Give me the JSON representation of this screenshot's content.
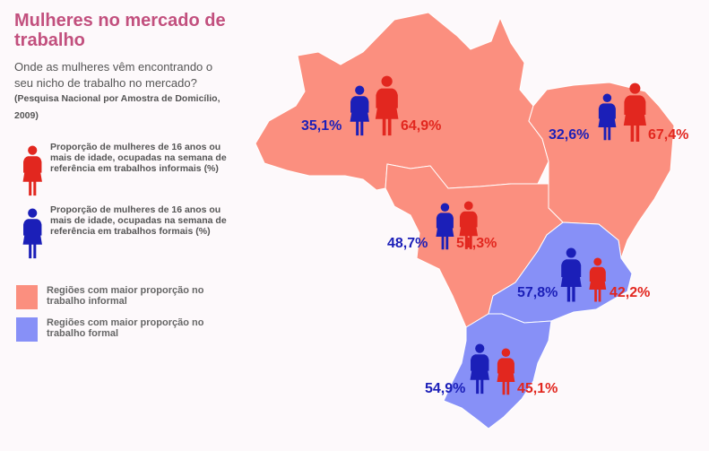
{
  "title": "Mulheres no mercado de trabalho",
  "subtitle": "Onde as mulheres vêm encontrando o seu nicho de trabalho no mercado?",
  "source": "(Pesquisa Nacional por Amostra de Domicílio, 2009)",
  "legend": {
    "informal_text": "Proporção de mulheres de 16 anos ou mais de idade, ocupadas na semana de referência em trabalhos informais (%)",
    "formal_text": "Proporção de mulheres de 16 anos ou mais de idade, ocupadas na semana de referência em trabalhos formais (%)",
    "informal_icon": "woman-figure-red-icon",
    "formal_icon": "woman-figure-blue-icon"
  },
  "swatches": {
    "informal_text": "Regiões com maior proporção no trabalho informal",
    "formal_text": "Regiões com maior proporção no trabalho formal"
  },
  "colors": {
    "informal_region": "#fb8f7f",
    "formal_region": "#8790f7",
    "informal_figure": "#e2271f",
    "formal_figure": "#1b1fb8",
    "title": "#c2507e"
  },
  "regions": {
    "north": {
      "formal": "35,1%",
      "informal": "64,9%",
      "majority": "informal"
    },
    "northeast": {
      "formal": "32,6%",
      "informal": "67,4%",
      "majority": "informal"
    },
    "center_west": {
      "formal": "48,7%",
      "informal": "51,3%",
      "majority": "informal"
    },
    "southeast": {
      "formal": "57,8%",
      "informal": "42,2%",
      "majority": "formal"
    },
    "south": {
      "formal": "54,9%",
      "informal": "45,1%",
      "majority": "formal"
    }
  }
}
